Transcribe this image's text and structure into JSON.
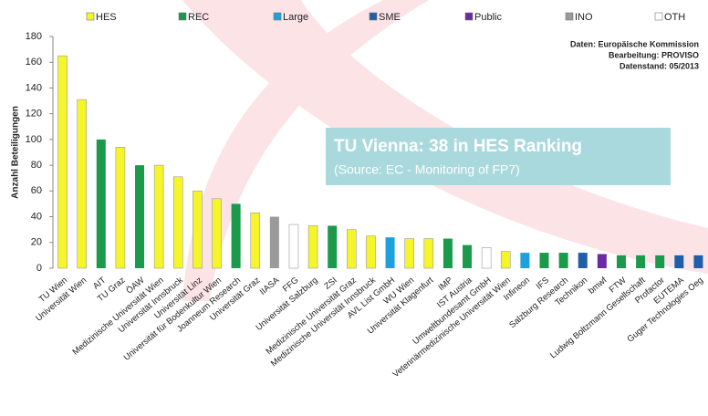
{
  "chart_data": {
    "type": "bar",
    "y_label": "Anzahl Beteiligungen",
    "notes": [
      "Daten: Europäische Kommission",
      "Bearbeitung: PROVISO",
      "Datenstand: 05/2013"
    ],
    "callout": {
      "title": "TU Vienna: 38 in HES Ranking",
      "subtitle": "(Source: EC - Monitoring of FP7)"
    },
    "categories": [
      "TU Wien",
      "Universität Wien",
      "AIT",
      "TU Graz",
      "ÖAW",
      "Medizinische Universität Wien",
      "Universität Innsbruck",
      "Universität Linz",
      "Universität für Bodenkultur Wien",
      "Joanneum Research",
      "Universität Graz",
      "IIASA",
      "FFG",
      "Universität Salzburg",
      "ZSI",
      "Medizinische Universität Graz",
      "Medizinische Universität Innsbruck",
      "AVL List GmbH",
      "WU Wien",
      "Universität Klagenfurt",
      "IMP",
      "IST Austria",
      "Umweltbundesamt GmbH",
      "Veterinärmedizinische Universität Wien",
      "Infineon",
      "IFS",
      "Salzburg Research",
      "Technikon",
      "bmwf",
      "FTW",
      "Ludwig Boltzmann Gesellschaft",
      "Profactor",
      "EUTEMA",
      "Guger Technologies Oeg"
    ],
    "series": [
      {
        "name": "HES",
        "color": "#f5f52a",
        "values": [
          165,
          131,
          null,
          94,
          null,
          80,
          71,
          60,
          54,
          null,
          43,
          null,
          null,
          33,
          null,
          30,
          25,
          null,
          23,
          23,
          null,
          null,
          null,
          13,
          null,
          null,
          null,
          null,
          null,
          null,
          null,
          null,
          null,
          null
        ]
      },
      {
        "name": "REC",
        "color": "#1a9a4a",
        "values": [
          null,
          null,
          100,
          null,
          80,
          null,
          null,
          null,
          null,
          50,
          null,
          null,
          null,
          null,
          33,
          null,
          null,
          null,
          null,
          null,
          23,
          18,
          null,
          null,
          null,
          12,
          12,
          null,
          null,
          10,
          10,
          10,
          null,
          null
        ]
      },
      {
        "name": "Large",
        "color": "#1ea0dc",
        "values": [
          null,
          null,
          null,
          null,
          null,
          null,
          null,
          null,
          null,
          null,
          null,
          null,
          null,
          null,
          null,
          null,
          null,
          24,
          null,
          null,
          null,
          null,
          null,
          null,
          12,
          null,
          null,
          null,
          null,
          null,
          null,
          null,
          null,
          null
        ]
      },
      {
        "name": "SME",
        "color": "#1f5fa8",
        "values": [
          null,
          null,
          null,
          null,
          null,
          null,
          null,
          null,
          null,
          null,
          null,
          null,
          null,
          null,
          null,
          null,
          null,
          null,
          null,
          null,
          null,
          null,
          null,
          null,
          null,
          null,
          null,
          12,
          null,
          null,
          null,
          null,
          10,
          10
        ]
      },
      {
        "name": "Public",
        "color": "#6a2aa0",
        "values": [
          null,
          null,
          null,
          null,
          null,
          null,
          null,
          null,
          null,
          null,
          null,
          null,
          null,
          null,
          null,
          null,
          null,
          null,
          null,
          null,
          null,
          null,
          null,
          null,
          null,
          null,
          null,
          null,
          11,
          null,
          null,
          null,
          null,
          null
        ]
      },
      {
        "name": "INO",
        "color": "#9a9a9a",
        "values": [
          null,
          null,
          null,
          null,
          null,
          null,
          null,
          null,
          null,
          null,
          null,
          40,
          null,
          null,
          null,
          null,
          null,
          null,
          null,
          null,
          null,
          null,
          null,
          null,
          null,
          null,
          null,
          null,
          null,
          null,
          null,
          null,
          null,
          null
        ]
      },
      {
        "name": "OTH",
        "color": "#ffffff",
        "values": [
          null,
          null,
          null,
          null,
          null,
          null,
          null,
          null,
          null,
          null,
          null,
          null,
          34,
          null,
          null,
          null,
          null,
          null,
          null,
          null,
          null,
          null,
          16,
          null,
          null,
          null,
          null,
          null,
          null,
          null,
          null,
          null,
          null,
          null
        ]
      }
    ],
    "ylim": [
      0,
      180
    ],
    "yticks": [
      0,
      20,
      40,
      60,
      80,
      100,
      120,
      140,
      160,
      180
    ],
    "grid": false
  }
}
